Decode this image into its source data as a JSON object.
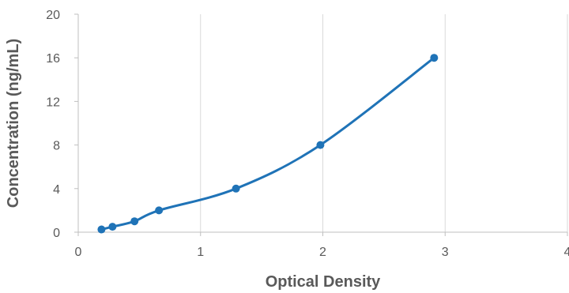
{
  "chart_data": {
    "type": "scatter",
    "xlabel": "Optical Density",
    "ylabel": "Concentration (ng/mL)",
    "xlim": [
      0,
      4
    ],
    "ylim": [
      0,
      20
    ],
    "xticks": [
      0,
      1,
      2,
      3,
      4
    ],
    "yticks": [
      0,
      4,
      8,
      12,
      16,
      20
    ],
    "grid": "vertical",
    "legend": "none",
    "colors": {
      "series": "#1f73b7",
      "grid": "#d9d9d9",
      "axis": "#bfbfbf",
      "text": "#595959"
    },
    "series": [
      {
        "marker": "circle",
        "trendline": "smooth-curve",
        "points": [
          {
            "x": 0.19,
            "y": 0.25
          },
          {
            "x": 0.28,
            "y": 0.5
          },
          {
            "x": 0.46,
            "y": 1
          },
          {
            "x": 0.66,
            "y": 2
          },
          {
            "x": 1.29,
            "y": 4
          },
          {
            "x": 1.98,
            "y": 8
          },
          {
            "x": 2.91,
            "y": 16
          }
        ]
      }
    ]
  }
}
